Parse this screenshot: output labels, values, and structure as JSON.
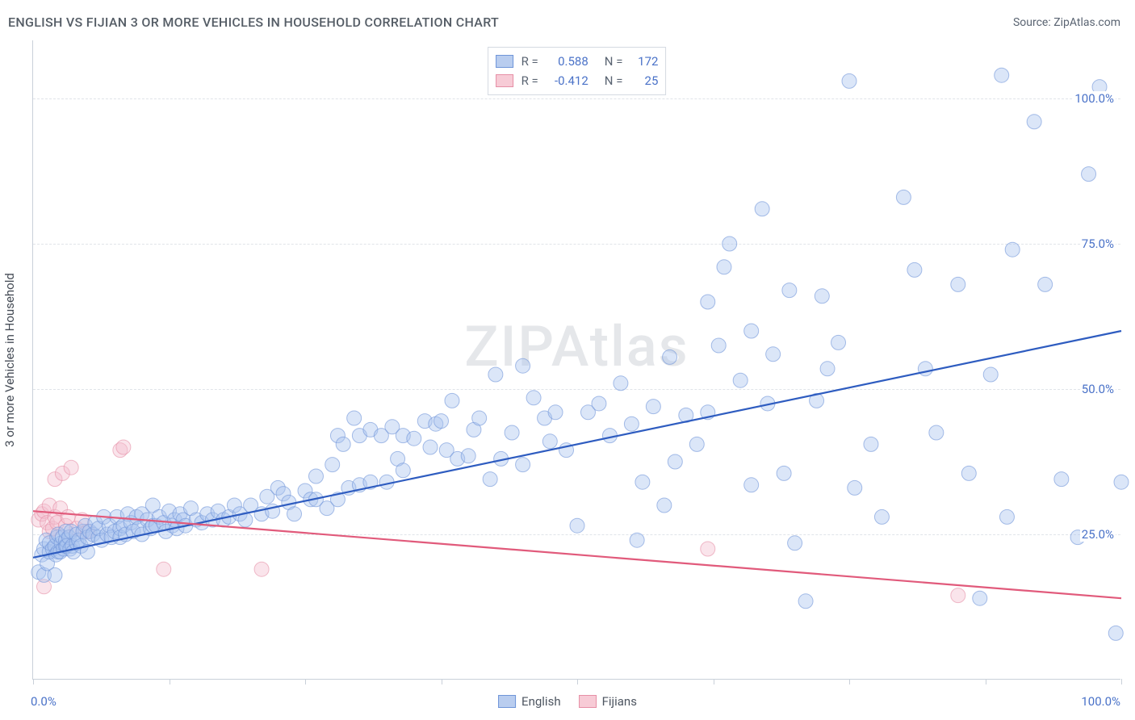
{
  "title": "ENGLISH VS FIJIAN 3 OR MORE VEHICLES IN HOUSEHOLD CORRELATION CHART",
  "source": "Source: ZipAtlas.com",
  "watermark": "ZIPAtlas",
  "ylabel": "3 or more Vehicles in Household",
  "chart": {
    "type": "scatter-correlation",
    "background_color": "#ffffff",
    "grid_color": "#e0e4e9",
    "axis_color": "#c9d0d9",
    "xlim": [
      0,
      100
    ],
    "ylim": [
      0,
      110
    ],
    "x_axis_labels": [
      {
        "x": 0,
        "text": "0.0%"
      },
      {
        "x": 100,
        "text": "100.0%"
      }
    ],
    "x_ticks": [
      0,
      12.5,
      25,
      37.5,
      50,
      62.5,
      75,
      87.5,
      100
    ],
    "y_grid": [
      {
        "y": 25,
        "label": "25.0%"
      },
      {
        "y": 50,
        "label": "50.0%"
      },
      {
        "y": 75,
        "label": "75.0%"
      },
      {
        "y": 100,
        "label": "100.0%"
      }
    ],
    "marker_radius": 9,
    "marker_opacity": 0.42,
    "line_width": 2.2,
    "series": [
      {
        "name": "English",
        "swatch_fill": "#b9cdef",
        "swatch_border": "#6f95d8",
        "marker_fill": "#a9c4ee",
        "marker_stroke": "#6f95d8",
        "line_color": "#2e5cc0",
        "R": "0.588",
        "N": "172",
        "regression": {
          "x1": 0,
          "y1": 21,
          "x2": 100,
          "y2": 60
        },
        "points": [
          [
            0.5,
            18.5
          ],
          [
            0.8,
            21.5
          ],
          [
            1,
            18
          ],
          [
            1,
            22.5
          ],
          [
            1.2,
            24
          ],
          [
            1.3,
            20
          ],
          [
            1.5,
            22
          ],
          [
            1.5,
            23.5
          ],
          [
            1.8,
            22.5
          ],
          [
            2,
            23
          ],
          [
            2,
            18
          ],
          [
            2.1,
            21.5
          ],
          [
            2.2,
            24.5
          ],
          [
            2.3,
            22
          ],
          [
            2.3,
            25
          ],
          [
            2.5,
            22
          ],
          [
            2.6,
            23.5
          ],
          [
            2.7,
            24.5
          ],
          [
            2.8,
            22.5
          ],
          [
            3,
            23
          ],
          [
            3,
            24
          ],
          [
            3,
            25.5
          ],
          [
            3.1,
            23
          ],
          [
            3.3,
            24.5
          ],
          [
            3.4,
            22.5
          ],
          [
            3.5,
            25.5
          ],
          [
            3.6,
            23
          ],
          [
            3.7,
            22
          ],
          [
            4,
            23.5
          ],
          [
            4,
            25
          ],
          [
            4.2,
            24
          ],
          [
            4.4,
            23
          ],
          [
            4.6,
            25.5
          ],
          [
            4.8,
            26.5
          ],
          [
            5,
            22
          ],
          [
            5,
            24.5
          ],
          [
            5.2,
            25.5
          ],
          [
            5.5,
            25
          ],
          [
            5.7,
            27
          ],
          [
            6,
            24.5
          ],
          [
            6,
            26
          ],
          [
            6.3,
            24
          ],
          [
            6.5,
            28
          ],
          [
            6.8,
            25
          ],
          [
            7,
            26.5
          ],
          [
            7.2,
            24.5
          ],
          [
            7.5,
            25.5
          ],
          [
            7.7,
            28
          ],
          [
            8,
            26
          ],
          [
            8,
            24.5
          ],
          [
            8.3,
            26.5
          ],
          [
            8.5,
            25
          ],
          [
            8.7,
            28.5
          ],
          [
            9,
            27
          ],
          [
            9.2,
            25.5
          ],
          [
            9.5,
            28
          ],
          [
            9.7,
            26
          ],
          [
            10,
            25
          ],
          [
            10,
            28.5
          ],
          [
            10.5,
            27.5
          ],
          [
            10.8,
            26
          ],
          [
            11,
            26.5
          ],
          [
            11,
            30
          ],
          [
            11.3,
            26.5
          ],
          [
            11.6,
            28
          ],
          [
            12,
            27
          ],
          [
            12.2,
            25.5
          ],
          [
            12.5,
            29
          ],
          [
            12.8,
            26.5
          ],
          [
            13,
            27.5
          ],
          [
            13.2,
            26
          ],
          [
            13.5,
            28.5
          ],
          [
            13.8,
            27.5
          ],
          [
            14,
            26.5
          ],
          [
            14.5,
            29.5
          ],
          [
            15,
            27.5
          ],
          [
            15.5,
            27
          ],
          [
            16,
            28.5
          ],
          [
            16.5,
            27.5
          ],
          [
            17,
            29
          ],
          [
            17.5,
            27.5
          ],
          [
            18,
            28
          ],
          [
            18.5,
            30
          ],
          [
            19,
            28.5
          ],
          [
            19.5,
            27.5
          ],
          [
            20,
            30
          ],
          [
            21,
            28.5
          ],
          [
            21.5,
            31.5
          ],
          [
            22,
            29
          ],
          [
            22.5,
            33
          ],
          [
            23,
            32
          ],
          [
            23.5,
            30.5
          ],
          [
            24,
            28.5
          ],
          [
            25,
            32.5
          ],
          [
            25.5,
            31
          ],
          [
            26,
            35
          ],
          [
            26,
            31
          ],
          [
            27,
            29.5
          ],
          [
            27.5,
            37
          ],
          [
            28,
            42
          ],
          [
            28,
            31
          ],
          [
            28.5,
            40.5
          ],
          [
            29,
            33
          ],
          [
            29.5,
            45
          ],
          [
            30,
            42
          ],
          [
            30,
            33.5
          ],
          [
            31,
            34
          ],
          [
            31,
            43
          ],
          [
            32,
            42
          ],
          [
            32.5,
            34
          ],
          [
            33,
            43.5
          ],
          [
            33.5,
            38
          ],
          [
            34,
            42
          ],
          [
            34,
            36
          ],
          [
            35,
            41.5
          ],
          [
            36,
            44.5
          ],
          [
            36.5,
            40
          ],
          [
            37,
            44
          ],
          [
            37.5,
            44.5
          ],
          [
            38,
            39.5
          ],
          [
            38.5,
            48
          ],
          [
            39,
            38
          ],
          [
            40,
            38.5
          ],
          [
            40.5,
            43
          ],
          [
            41,
            45
          ],
          [
            42,
            34.5
          ],
          [
            42.5,
            52.5
          ],
          [
            43,
            38
          ],
          [
            44,
            42.5
          ],
          [
            45,
            37
          ],
          [
            45,
            54
          ],
          [
            46,
            48.5
          ],
          [
            47,
            45
          ],
          [
            47.5,
            41
          ],
          [
            48,
            46
          ],
          [
            49,
            39.5
          ],
          [
            50,
            26.5
          ],
          [
            51,
            46
          ],
          [
            52,
            47.5
          ],
          [
            53,
            42
          ],
          [
            54,
            51
          ],
          [
            55,
            44
          ],
          [
            55.5,
            24
          ],
          [
            56,
            34
          ],
          [
            57,
            47
          ],
          [
            58,
            30
          ],
          [
            58.5,
            55.5
          ],
          [
            59,
            37.5
          ],
          [
            60,
            45.5
          ],
          [
            61,
            40.5
          ],
          [
            62,
            65
          ],
          [
            62,
            46
          ],
          [
            63,
            57.5
          ],
          [
            63.5,
            71
          ],
          [
            64,
            75
          ],
          [
            65,
            51.5
          ],
          [
            66,
            33.5
          ],
          [
            66,
            60
          ],
          [
            67,
            81
          ],
          [
            67.5,
            47.5
          ],
          [
            68,
            56
          ],
          [
            69,
            35.5
          ],
          [
            69.5,
            67
          ],
          [
            70,
            23.5
          ],
          [
            71,
            13.5
          ],
          [
            72,
            48
          ],
          [
            72.5,
            66
          ],
          [
            73,
            53.5
          ],
          [
            74,
            58
          ],
          [
            75,
            103
          ],
          [
            75.5,
            33
          ],
          [
            77,
            40.5
          ],
          [
            78,
            28
          ],
          [
            80,
            83
          ],
          [
            81,
            70.5
          ],
          [
            82,
            53.5
          ],
          [
            83,
            42.5
          ],
          [
            85,
            68
          ],
          [
            86,
            35.5
          ],
          [
            87,
            14
          ],
          [
            88,
            52.5
          ],
          [
            89,
            104
          ],
          [
            89.5,
            28
          ],
          [
            90,
            74
          ],
          [
            92,
            96
          ],
          [
            93,
            68
          ],
          [
            94.5,
            34.5
          ],
          [
            96,
            24.5
          ],
          [
            97,
            87
          ],
          [
            98,
            102
          ],
          [
            99.5,
            8
          ],
          [
            100,
            34
          ]
        ]
      },
      {
        "name": "Fijians",
        "swatch_fill": "#f7cbd6",
        "swatch_border": "#e68fa6",
        "marker_fill": "#f4bfcf",
        "marker_stroke": "#e68fa6",
        "line_color": "#e15a7b",
        "R": "-0.412",
        "N": "25",
        "regression": {
          "x1": 0,
          "y1": 29,
          "x2": 100,
          "y2": 14
        },
        "points": [
          [
            0.5,
            27.5
          ],
          [
            0.8,
            28.5
          ],
          [
            1,
            29
          ],
          [
            1,
            16
          ],
          [
            1.3,
            27
          ],
          [
            1.5,
            30
          ],
          [
            1.5,
            25.5
          ],
          [
            1.8,
            26
          ],
          [
            2,
            34.5
          ],
          [
            2,
            28
          ],
          [
            2.2,
            27
          ],
          [
            2.5,
            29.5
          ],
          [
            2.7,
            35.5
          ],
          [
            3,
            26.5
          ],
          [
            3.2,
            28
          ],
          [
            3.5,
            36.5
          ],
          [
            4,
            26
          ],
          [
            4.5,
            27.5
          ],
          [
            5,
            25.5
          ],
          [
            8,
            39.5
          ],
          [
            8.3,
            40
          ],
          [
            12,
            19
          ],
          [
            21,
            19
          ],
          [
            62,
            22.5
          ],
          [
            85,
            14.5
          ]
        ]
      }
    ]
  },
  "legend_bottom": [
    {
      "label": "English",
      "fill": "#b9cdef",
      "border": "#6f95d8"
    },
    {
      "label": "Fijians",
      "fill": "#f7cbd6",
      "border": "#e68fa6"
    }
  ]
}
